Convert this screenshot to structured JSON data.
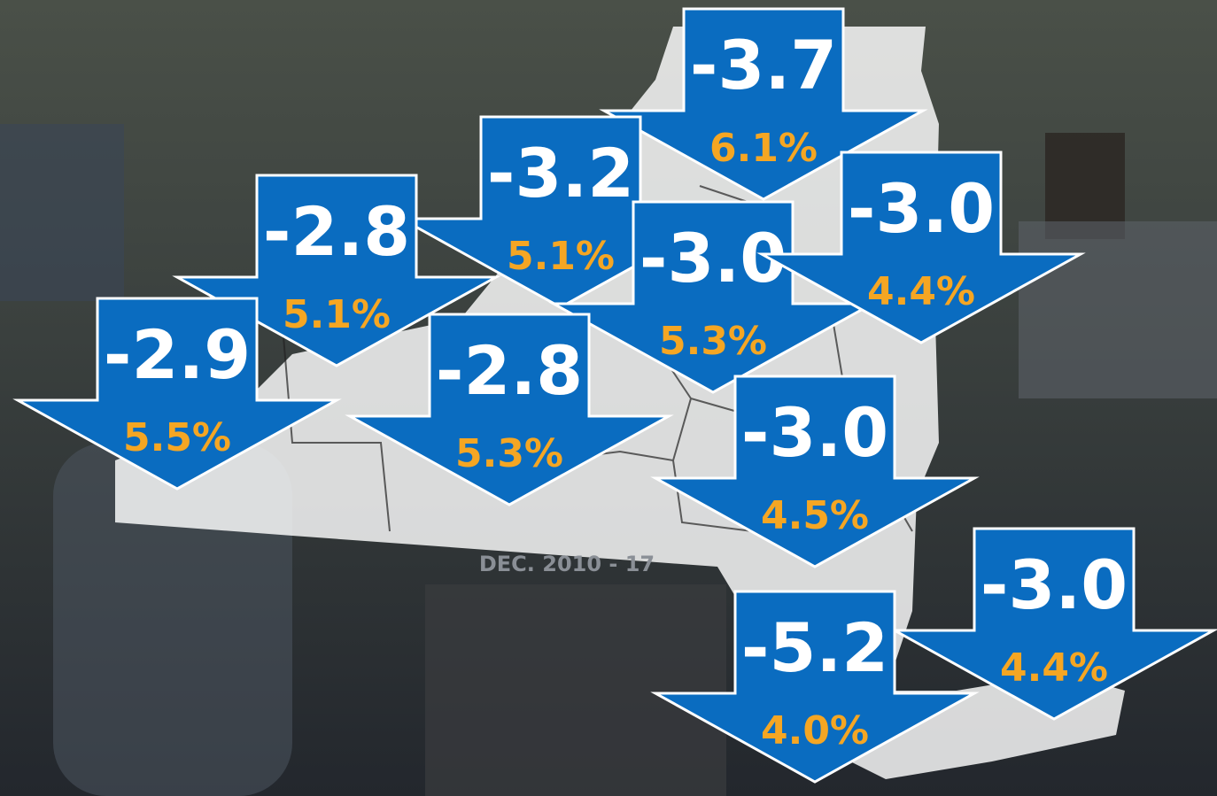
{
  "date_label": "DEC. 2010 - 17",
  "regions": [
    {
      "change": "-3.7",
      "rate": "6.1%"
    },
    {
      "change": "-3.2",
      "rate": "5.1%"
    },
    {
      "change": "-2.8",
      "rate": "5.1%"
    },
    {
      "change": "-3.0",
      "rate": "5.3%"
    },
    {
      "change": "-3.0",
      "rate": "4.4%"
    },
    {
      "change": "-2.9",
      "rate": "5.5%"
    },
    {
      "change": "-2.8",
      "rate": "5.3%"
    },
    {
      "change": "-3.0",
      "rate": "4.5%"
    },
    {
      "change": "-3.0",
      "rate": "4.4%"
    },
    {
      "change": "-5.2",
      "rate": "4.0%"
    }
  ]
}
